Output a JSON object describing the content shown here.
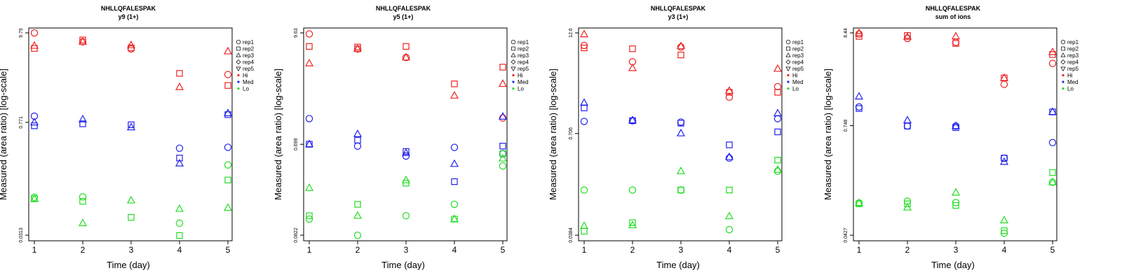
{
  "legend": {
    "replicates": [
      "rep1",
      "rep2",
      "rep3",
      "rep4",
      "rep5"
    ],
    "levels": [
      "Hi",
      "Med",
      "Lo"
    ]
  },
  "colors": {
    "Hi": "#ee2222",
    "Med": "#2222ee",
    "Lo": "#22dd22",
    "axis": "#000000"
  },
  "chart_data": [
    {
      "type": "scatter",
      "title": "NHLLQFALESPAK",
      "subtitle": "y9 (1+)",
      "xlabel": "Time (day)",
      "ylabel": "Measured (area ratio) [log-scale]",
      "log_y": true,
      "xlim": [
        1,
        5
      ],
      "ylim": [
        0.0313,
        9.79
      ],
      "xticks": [
        "1",
        "2",
        "3",
        "4",
        "5"
      ],
      "yticks": [
        0.0313,
        0.771,
        9.79
      ],
      "ytick_labels": [
        "0.0313",
        "0.771",
        "9.79"
      ],
      "legend_position": "right",
      "grid": false,
      "series": [
        {
          "name": "rep1",
          "group": "Hi",
          "x": [
            1,
            2,
            3,
            4,
            5
          ],
          "y": [
            9.78,
            7.6,
            6.2,
            null,
            3.0
          ]
        },
        {
          "name": "rep2",
          "group": "Hi",
          "x": [
            1,
            2,
            3,
            4,
            5
          ],
          "y": [
            6.3,
            8.0,
            6.4,
            3.1,
            2.2
          ]
        },
        {
          "name": "rep3",
          "group": "Hi",
          "x": [
            1,
            2,
            3,
            4,
            5
          ],
          "y": [
            6.8,
            7.6,
            6.9,
            2.1,
            5.8
          ]
        },
        {
          "name": "rep1",
          "group": "Med",
          "x": [
            1,
            2,
            3,
            4,
            5
          ],
          "y": [
            0.92,
            null,
            null,
            0.37,
            0.38
          ]
        },
        {
          "name": "rep2",
          "group": "Med",
          "x": [
            1,
            2,
            3,
            4,
            5
          ],
          "y": [
            0.7,
            0.74,
            0.72,
            0.28,
            0.96
          ]
        },
        {
          "name": "rep3",
          "group": "Med",
          "x": [
            1,
            2,
            3,
            4,
            5
          ],
          "y": [
            0.77,
            0.84,
            0.67,
            0.24,
            1.0
          ]
        },
        {
          "name": "rep1",
          "group": "Lo",
          "x": [
            1,
            2,
            3,
            4,
            5
          ],
          "y": [
            0.092,
            0.093,
            null,
            0.044,
            0.23
          ]
        },
        {
          "name": "rep2",
          "group": "Lo",
          "x": [
            1,
            2,
            3,
            4,
            5
          ],
          "y": [
            0.088,
            0.082,
            null,
            0.031,
            0.15
          ]
        },
        {
          "name": "rep3",
          "group": "Lo",
          "x": [
            1,
            2,
            3,
            4,
            5
          ],
          "y": [
            0.088,
            0.044,
            0.084,
            0.066,
            0.068
          ]
        }
      ],
      "extra_points": [
        {
          "group": "Lo",
          "marker": "square",
          "x": 3,
          "y": 0.052
        }
      ]
    },
    {
      "type": "scatter",
      "title": "NHLLQFALESPAK",
      "subtitle": "y5 (1+)",
      "xlabel": "Time (day)",
      "ylabel": "Measured (area ratio) [log-scale]",
      "log_y": true,
      "xlim": [
        1,
        5
      ],
      "ylim": [
        0.0822,
        9.63
      ],
      "xticks": [
        "1",
        "2",
        "3",
        "4",
        "5"
      ],
      "yticks": [
        0.0822,
        0.699,
        9.63
      ],
      "ytick_labels": [
        "0.0822",
        "0.699",
        "9.63"
      ],
      "legend_position": "right",
      "grid": false,
      "series": [
        {
          "name": "rep1",
          "group": "Hi",
          "x": [
            1,
            2,
            3,
            4,
            5
          ],
          "y": [
            9.4,
            6.6,
            5.4,
            null,
            1.3
          ]
        },
        {
          "name": "rep2",
          "group": "Hi",
          "x": [
            1,
            2,
            3,
            4,
            5
          ],
          "y": [
            7.0,
            6.9,
            7.0,
            2.9,
            4.3
          ]
        },
        {
          "name": "rep3",
          "group": "Hi",
          "x": [
            1,
            2,
            3,
            4,
            5
          ],
          "y": [
            4.7,
            6.6,
            5.4,
            2.2,
            2.9
          ]
        },
        {
          "name": "rep1",
          "group": "Med",
          "x": [
            1,
            2,
            3,
            4,
            5
          ],
          "y": [
            1.28,
            0.67,
            0.53,
            0.65,
            0.56
          ]
        },
        {
          "name": "rep2",
          "group": "Med",
          "x": [
            1,
            2,
            3,
            4,
            5
          ],
          "y": [
            0.7,
            0.77,
            0.59,
            0.29,
            0.67
          ]
        },
        {
          "name": "rep3",
          "group": "Med",
          "x": [
            1,
            2,
            3,
            4,
            5
          ],
          "y": [
            0.7,
            0.89,
            0.57,
            0.44,
            1.34
          ]
        },
        {
          "name": "rep1",
          "group": "Lo",
          "x": [
            1,
            2,
            3,
            4,
            5
          ],
          "y": [
            0.12,
            0.082,
            0.13,
            0.17,
            0.42
          ]
        },
        {
          "name": "rep2",
          "group": "Lo",
          "x": [
            1,
            2,
            3,
            4,
            5
          ],
          "y": [
            0.13,
            0.17,
            0.28,
            0.12,
            0.56
          ]
        },
        {
          "name": "rep3",
          "group": "Lo",
          "x": [
            1,
            2,
            3,
            4,
            5
          ],
          "y": [
            0.25,
            0.13,
            0.3,
            0.12,
            0.5
          ]
        }
      ]
    },
    {
      "type": "scatter",
      "title": "NHLLQFALESPAK",
      "subtitle": "y3 (1+)",
      "xlabel": "Time (day)",
      "ylabel": "Measured (area ratio) [log-scale]",
      "log_y": true,
      "xlim": [
        1,
        5
      ],
      "ylim": [
        0.0384,
        12.6
      ],
      "xticks": [
        "1",
        "2",
        "3",
        "4",
        "5"
      ],
      "yticks": [
        0.0384,
        0.706,
        12.6
      ],
      "ytick_labels": [
        "0.0384",
        "0.706",
        "12.6"
      ],
      "legend_position": "right",
      "grid": false,
      "series": [
        {
          "name": "rep1",
          "group": "Hi",
          "x": [
            1,
            2,
            3,
            4,
            5
          ],
          "y": [
            8.8,
            5.5,
            8.4,
            2.0,
            2.7
          ]
        },
        {
          "name": "rep2",
          "group": "Hi",
          "x": [
            1,
            2,
            3,
            4,
            5
          ],
          "y": [
            8.2,
            8.0,
            6.7,
            2.3,
            2.3
          ]
        },
        {
          "name": "rep3",
          "group": "Hi",
          "x": [
            1,
            2,
            3,
            4,
            5
          ],
          "y": [
            12.1,
            4.6,
            8.6,
            2.4,
            4.5
          ]
        },
        {
          "name": "rep1",
          "group": "Med",
          "x": [
            1,
            2,
            3,
            4,
            5
          ],
          "y": [
            1.0,
            1.02,
            0.98,
            0.35,
            1.08
          ]
        },
        {
          "name": "rep2",
          "group": "Med",
          "x": [
            1,
            2,
            3,
            4,
            5
          ],
          "y": [
            1.47,
            1.02,
            0.95,
            0.51,
            0.74
          ]
        },
        {
          "name": "rep3",
          "group": "Med",
          "x": [
            1,
            2,
            3,
            4,
            5
          ],
          "y": [
            1.7,
            1.03,
            0.71,
            0.36,
            1.26
          ]
        },
        {
          "name": "rep1",
          "group": "Lo",
          "x": [
            1,
            2,
            3,
            4,
            5
          ],
          "y": [
            0.14,
            0.14,
            0.14,
            0.045,
            0.24
          ]
        },
        {
          "name": "rep2",
          "group": "Lo",
          "x": [
            1,
            2,
            3,
            4,
            5
          ],
          "y": [
            0.043,
            0.055,
            0.14,
            0.14,
            0.33
          ]
        },
        {
          "name": "rep3",
          "group": "Lo",
          "x": [
            1,
            2,
            3,
            4,
            5
          ],
          "y": [
            0.05,
            0.051,
            0.24,
            0.066,
            0.25
          ]
        }
      ]
    },
    {
      "type": "scatter",
      "title": "NHLLQFALESPAK",
      "subtitle": "sum of ions",
      "xlabel": "Time (day)",
      "ylabel": "Measured (area ratio) [log-scale]",
      "log_y": true,
      "xlim": [
        1,
        5
      ],
      "ylim": [
        0.0427,
        8.44
      ],
      "xticks": [
        "1",
        "2",
        "3",
        "4",
        "5"
      ],
      "yticks": [
        0.0427,
        0.748,
        8.44
      ],
      "ytick_labels": [
        "0.0427",
        "0.748",
        "8.44"
      ],
      "legend_position": "right",
      "grid": false,
      "series": [
        {
          "name": "rep1",
          "group": "Hi",
          "x": [
            1,
            2,
            3,
            4,
            5
          ],
          "y": [
            8.2,
            7.3,
            6.6,
            2.2,
            3.8
          ]
        },
        {
          "name": "rep2",
          "group": "Hi",
          "x": [
            1,
            2,
            3,
            4,
            5
          ],
          "y": [
            7.7,
            7.9,
            6.4,
            2.6,
            4.8
          ]
        },
        {
          "name": "rep3",
          "group": "Hi",
          "x": [
            1,
            2,
            3,
            4,
            5
          ],
          "y": [
            8.4,
            7.6,
            7.7,
            2.6,
            5.1
          ]
        },
        {
          "name": "rep1",
          "group": "Med",
          "x": [
            1,
            2,
            3,
            4,
            5
          ],
          "y": [
            1.22,
            0.74,
            0.74,
            0.32,
            0.48
          ]
        },
        {
          "name": "rep2",
          "group": "Med",
          "x": [
            1,
            2,
            3,
            4,
            5
          ],
          "y": [
            1.17,
            0.74,
            0.71,
            0.32,
            1.07
          ]
        },
        {
          "name": "rep3",
          "group": "Med",
          "x": [
            1,
            2,
            3,
            4,
            5
          ],
          "y": [
            1.6,
            0.86,
            0.74,
            0.29,
            1.07
          ]
        },
        {
          "name": "rep1",
          "group": "Lo",
          "x": [
            1,
            2,
            3,
            4,
            5
          ],
          "y": [
            0.099,
            0.104,
            0.1,
            0.045,
            0.17
          ]
        },
        {
          "name": "rep2",
          "group": "Lo",
          "x": [
            1,
            2,
            3,
            4,
            5
          ],
          "y": [
            0.097,
            0.097,
            0.093,
            0.048,
            0.22
          ]
        },
        {
          "name": "rep3",
          "group": "Lo",
          "x": [
            1,
            2,
            3,
            4,
            5
          ],
          "y": [
            0.099,
            0.088,
            0.13,
            0.063,
            0.17
          ]
        }
      ]
    }
  ]
}
